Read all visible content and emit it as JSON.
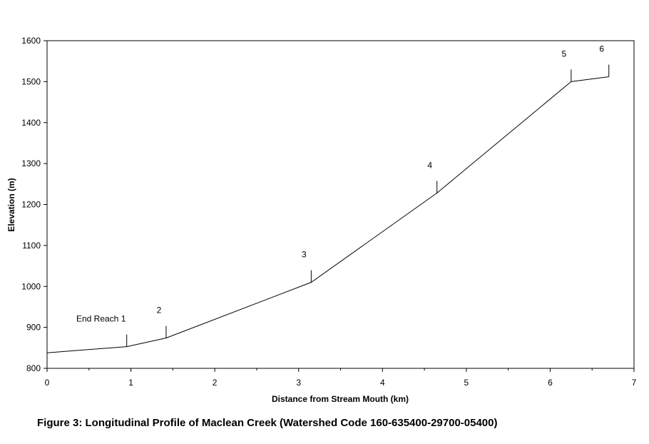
{
  "chart_data": {
    "type": "line",
    "xlabel": "Distance from Stream Mouth (km)",
    "ylabel": "Elevation (m)",
    "xlim": [
      0,
      7
    ],
    "ylim": [
      800,
      1600
    ],
    "x_ticks": [
      0,
      1,
      2,
      3,
      4,
      5,
      6,
      7
    ],
    "x_minor_step": 0.5,
    "y_ticks": [
      800,
      900,
      1000,
      1100,
      1200,
      1300,
      1400,
      1500,
      1600
    ],
    "grid": false,
    "line_color": "#000000",
    "series": [
      {
        "points": [
          {
            "x": 0,
            "y": 838
          },
          {
            "x": 0.95,
            "y": 853
          },
          {
            "x": 1.42,
            "y": 874
          },
          {
            "x": 3.15,
            "y": 1010
          },
          {
            "x": 4.65,
            "y": 1228
          },
          {
            "x": 6.25,
            "y": 1500
          },
          {
            "x": 6.7,
            "y": 1512
          }
        ]
      }
    ],
    "annotations": [
      {
        "label": "End Reach 1",
        "x": 0.95,
        "y": 853
      },
      {
        "label": "2",
        "x": 1.42,
        "y": 874
      },
      {
        "label": "3",
        "x": 3.15,
        "y": 1010
      },
      {
        "label": "4",
        "x": 4.65,
        "y": 1228
      },
      {
        "label": "5",
        "x": 6.25,
        "y": 1500
      },
      {
        "label": "6",
        "x": 6.7,
        "y": 1512
      }
    ]
  },
  "caption": "Figure 3:  Longitudinal Profile of Maclean Creek (Watershed Code 160-635400-29700-05400)"
}
